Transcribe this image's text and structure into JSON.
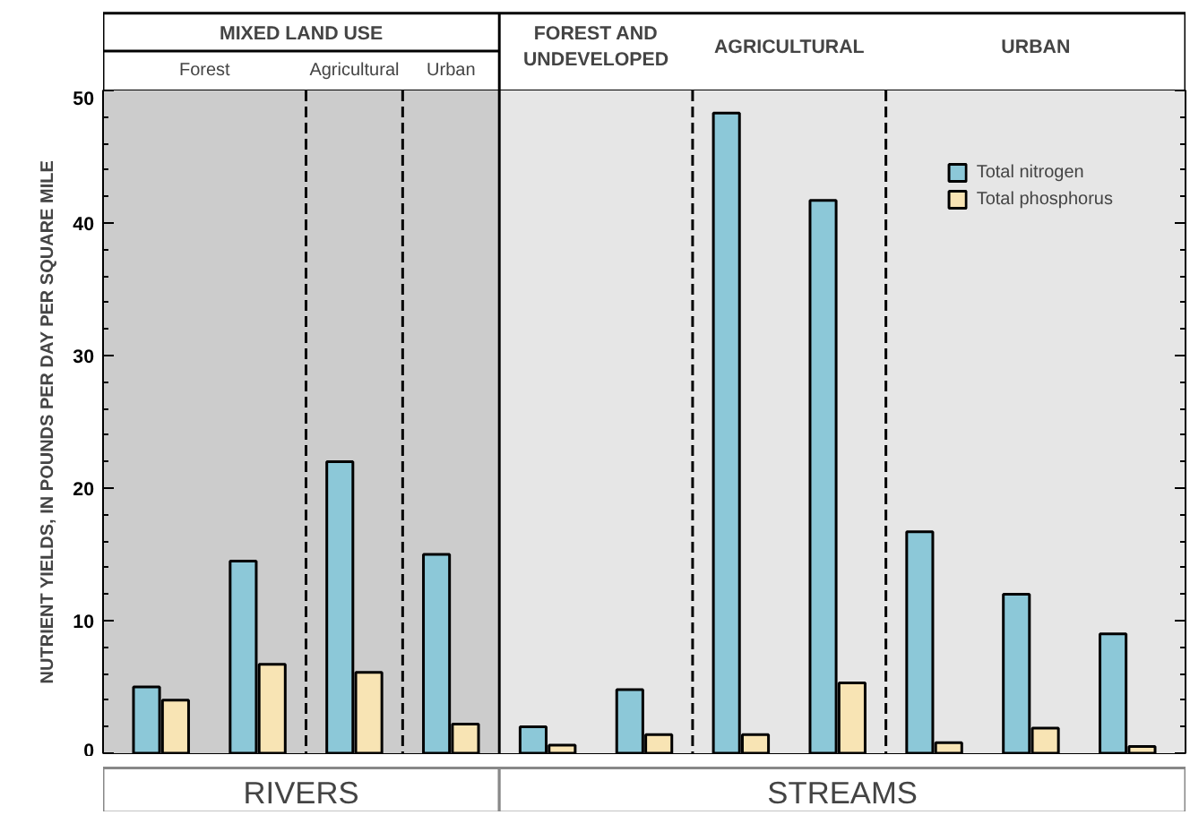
{
  "chart_data": {
    "type": "bar",
    "ylabel": "NUTRIENT YIELDS, IN POUNDS PER DAY PER SQUARE MILE",
    "categories": [
      null,
      null,
      null,
      null,
      null,
      null,
      null,
      null,
      null,
      null,
      null
    ],
    "ylim": [
      0,
      50
    ],
    "yticks": [
      0,
      10,
      20,
      30,
      40,
      50
    ],
    "legend": "top right",
    "series": [
      {
        "name": "Total nitrogen",
        "color": "#8cc8d8",
        "values": [
          5,
          14.5,
          22,
          15,
          2,
          4.8,
          48.3,
          41.7,
          16.7,
          12,
          9
        ]
      },
      {
        "name": "Total phosphorus",
        "color": "#f8e4b4",
        "values": [
          4,
          6.7,
          6.1,
          2.2,
          0.6,
          1.4,
          1.4,
          5.3,
          0.8,
          1.9,
          0.5
        ]
      }
    ],
    "annotations": [
      "MIXED LAND USE",
      "Forest",
      "Agricultural",
      "Urban",
      "FOREST AND\nUNDEVELOPED",
      "AGRICULTURAL",
      "URBAN",
      "RIVERS",
      "STREAMS"
    ]
  }
}
